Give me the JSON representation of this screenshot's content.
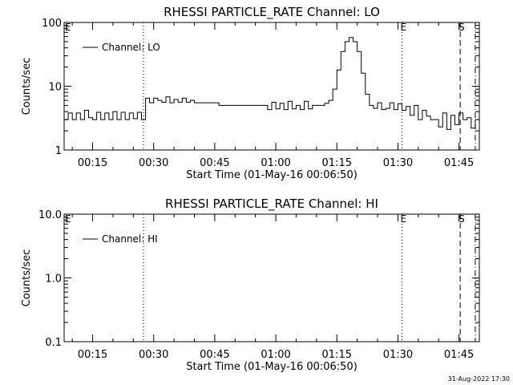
{
  "footer_timestamp": "31-Aug-2022 17:30",
  "chart_data": [
    {
      "type": "line",
      "title": "RHESSI PARTICLE_RATE Channel: LO",
      "xlabel": "Start Time (01-May-16 00:06:50)",
      "ylabel": "Counts/sec",
      "y_scale": "log",
      "ylim": [
        1,
        100
      ],
      "xlim_minutes": [
        8,
        110
      ],
      "x_ticks": [
        {
          "minute": 15,
          "label": "00:15"
        },
        {
          "minute": 30,
          "label": "00:30"
        },
        {
          "minute": 45,
          "label": "00:45"
        },
        {
          "minute": 60,
          "label": "01:00"
        },
        {
          "minute": 75,
          "label": "01:15"
        },
        {
          "minute": 90,
          "label": "01:30"
        },
        {
          "minute": 105,
          "label": "01:45"
        }
      ],
      "y_ticks": [
        {
          "value": 1,
          "label": "1"
        },
        {
          "value": 10,
          "label": "10"
        },
        {
          "value": 100,
          "label": "100"
        }
      ],
      "legend": {
        "label": "Channel: LO",
        "position": "top-left"
      },
      "markers": [
        {
          "minute": 8,
          "style": "none",
          "label": "E"
        },
        {
          "minute": 27.5,
          "style": "dotted",
          "label": ""
        },
        {
          "minute": 91,
          "style": "dotted",
          "label": "E"
        },
        {
          "minute": 105.3,
          "style": "dashed",
          "label": "S"
        },
        {
          "minute": 109,
          "style": "dashdot",
          "label": ""
        }
      ],
      "series": [
        {
          "x": [
            8,
            9,
            10,
            11,
            12,
            13,
            14,
            15,
            16,
            17,
            18,
            19,
            20,
            21,
            22,
            23,
            24,
            25,
            26,
            27,
            27.5,
            28,
            29,
            30,
            31,
            32,
            33,
            34,
            35,
            36,
            37,
            38,
            39,
            40,
            41,
            42,
            43,
            44,
            45,
            46,
            47,
            48,
            49,
            50,
            51,
            52,
            53,
            54,
            55,
            56,
            57,
            58,
            59,
            60,
            61,
            62,
            63,
            64,
            65,
            66,
            67,
            68,
            69,
            70,
            71,
            72,
            73,
            74,
            75,
            76,
            77,
            78,
            79,
            80,
            81,
            82,
            83,
            84,
            85,
            86,
            87,
            88,
            89,
            90,
            91,
            92,
            93,
            94,
            95,
            96,
            97,
            98,
            99,
            100,
            101,
            102,
            103,
            104,
            105,
            106,
            107,
            108,
            109
          ],
          "y": [
            3,
            3.8,
            3,
            3.8,
            3,
            4.2,
            3.2,
            3,
            3.9,
            3,
            3.8,
            3,
            4,
            3,
            3.9,
            3,
            3.8,
            3.1,
            3.9,
            3,
            3,
            6.5,
            5.5,
            6.5,
            6,
            5.6,
            6.8,
            5.5,
            6.2,
            5.6,
            6.5,
            5.6,
            6,
            5.5,
            5.5,
            5.5,
            5.5,
            5.5,
            5.5,
            5,
            5,
            5,
            5,
            5,
            5,
            5,
            5,
            5,
            5,
            5,
            5,
            4.3,
            5.6,
            4.4,
            5.4,
            4.3,
            5.8,
            4.4,
            5,
            4.3,
            5.8,
            4.4,
            5,
            5,
            5,
            5.4,
            6,
            9,
            18,
            35,
            50,
            58,
            50,
            35,
            16,
            7.5,
            5,
            4.5,
            5.5,
            4.3,
            4.5,
            5.5,
            4.3,
            5.3,
            4.2,
            4.8,
            3.5,
            5,
            3,
            4.2,
            3.4,
            3,
            3,
            2.3,
            3.8,
            2.1,
            3.5,
            2.5,
            3.8,
            3,
            3.2,
            2.2,
            3
          ]
        }
      ]
    },
    {
      "type": "line",
      "title": "RHESSI PARTICLE_RATE Channel: HI",
      "xlabel": "Start Time (01-May-16 00:06:50)",
      "ylabel": "Counts/sec",
      "y_scale": "log",
      "ylim": [
        0.1,
        10
      ],
      "xlim_minutes": [
        8,
        110
      ],
      "x_ticks": [
        {
          "minute": 15,
          "label": "00:15"
        },
        {
          "minute": 30,
          "label": "00:30"
        },
        {
          "minute": 45,
          "label": "00:45"
        },
        {
          "minute": 60,
          "label": "01:00"
        },
        {
          "minute": 75,
          "label": "01:15"
        },
        {
          "minute": 90,
          "label": "01:30"
        },
        {
          "minute": 105,
          "label": "01:45"
        }
      ],
      "y_ticks": [
        {
          "value": 0.1,
          "label": "0.1"
        },
        {
          "value": 1,
          "label": "1.0"
        },
        {
          "value": 10,
          "label": "10.0"
        }
      ],
      "legend": {
        "label": "Channel: HI",
        "position": "top-left"
      },
      "markers": [
        {
          "minute": 8,
          "style": "none",
          "label": "E"
        },
        {
          "minute": 27.5,
          "style": "dotted",
          "label": ""
        },
        {
          "minute": 91,
          "style": "dotted",
          "label": "E"
        },
        {
          "minute": 105.3,
          "style": "dashed",
          "label": "S"
        },
        {
          "minute": 109,
          "style": "dashdot",
          "label": ""
        }
      ],
      "series": []
    }
  ]
}
